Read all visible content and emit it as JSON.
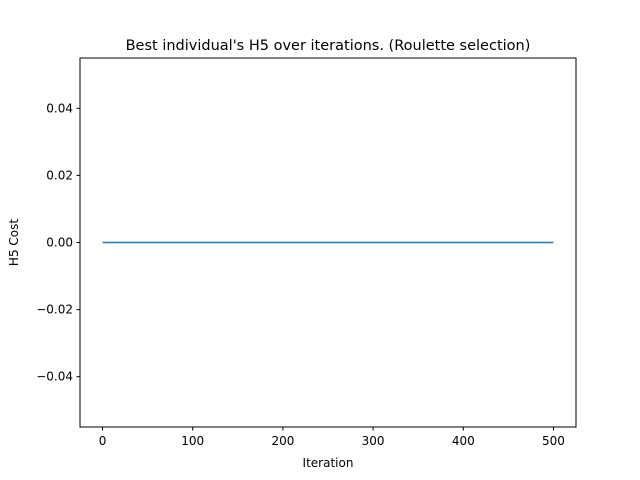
{
  "chart_data": {
    "type": "line",
    "title": "Best individual's H5 over iterations. (Roulette selection)",
    "xlabel": "Iteration",
    "ylabel": "H5 Cost",
    "xlim": [
      -25,
      525
    ],
    "ylim": [
      -0.055,
      0.055
    ],
    "xticks": [
      0,
      100,
      200,
      300,
      400,
      500
    ],
    "xtick_labels": [
      "0",
      "100",
      "200",
      "300",
      "400",
      "500"
    ],
    "yticks": [
      -0.04,
      -0.02,
      0.0,
      0.02,
      0.04
    ],
    "ytick_labels": [
      "−0.04",
      "−0.02",
      "0.00",
      "0.02",
      "0.04"
    ],
    "grid": false,
    "series": [
      {
        "color": "#1f77b4",
        "x": [
          0,
          500
        ],
        "y": [
          0,
          0
        ]
      }
    ]
  }
}
